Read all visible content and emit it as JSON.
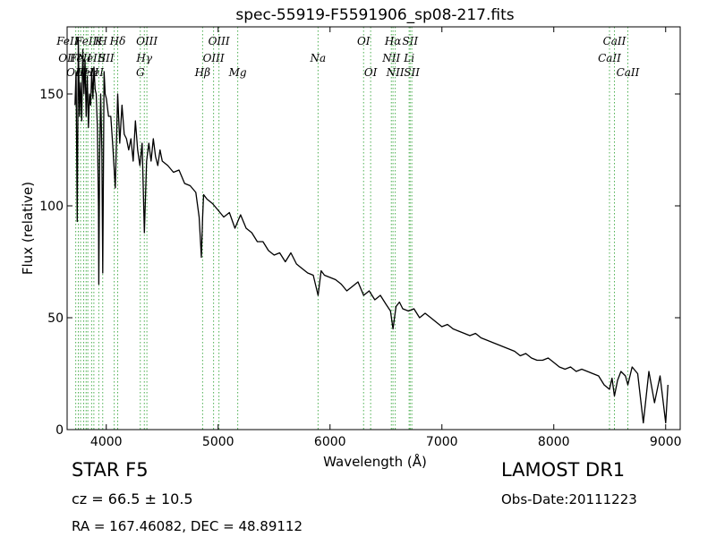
{
  "chart_data": {
    "type": "line",
    "title": "spec-55919-F5591906_sp08-217.fits",
    "xlabel": "Wavelength (Å)",
    "ylabel": "Flux (relative)",
    "xlim": [
      3650,
      9130
    ],
    "ylim": [
      0,
      180
    ],
    "xticks": [
      4000,
      5000,
      6000,
      7000,
      8000,
      9000
    ],
    "yticks": [
      0,
      50,
      100,
      150
    ],
    "grid": false,
    "line_color": "#000000",
    "marker_line_color": "#4caf50",
    "series": [
      {
        "x": [
          3720,
          3730,
          3740,
          3750,
          3760,
          3770,
          3780,
          3790,
          3800,
          3810,
          3820,
          3830,
          3840,
          3850,
          3860,
          3870,
          3880,
          3890,
          3900,
          3910,
          3920,
          3930,
          3933,
          3940,
          3950,
          3960,
          3968,
          3980,
          3990,
          4000,
          4020,
          4040,
          4060,
          4080,
          4102,
          4120,
          4140,
          4160,
          4180,
          4200,
          4220,
          4240,
          4260,
          4280,
          4300,
          4320,
          4340,
          4360,
          4380,
          4400,
          4420,
          4440,
          4460,
          4480,
          4500,
          4550,
          4600,
          4650,
          4700,
          4750,
          4800,
          4830,
          4850,
          4861,
          4870,
          4900,
          4950,
          5000,
          5050,
          5100,
          5150,
          5200,
          5250,
          5300,
          5350,
          5400,
          5450,
          5500,
          5550,
          5600,
          5650,
          5700,
          5750,
          5800,
          5850,
          5893,
          5920,
          5950,
          6000,
          6050,
          6100,
          6150,
          6200,
          6250,
          6300,
          6350,
          6400,
          6450,
          6500,
          6540,
          6563,
          6590,
          6620,
          6650,
          6700,
          6750,
          6800,
          6850,
          6900,
          6950,
          7000,
          7050,
          7100,
          7150,
          7200,
          7250,
          7300,
          7350,
          7400,
          7450,
          7500,
          7550,
          7600,
          7650,
          7700,
          7750,
          7800,
          7850,
          7900,
          7950,
          8000,
          8050,
          8100,
          8150,
          8200,
          8250,
          8300,
          8350,
          8400,
          8450,
          8498,
          8520,
          8542,
          8570,
          8600,
          8640,
          8662,
          8700,
          8750,
          8800,
          8850,
          8900,
          8950,
          9000,
          9020
        ],
        "y": [
          145,
          160,
          93,
          175,
          140,
          155,
          138,
          170,
          150,
          165,
          140,
          158,
          135,
          150,
          145,
          160,
          148,
          162,
          152,
          150,
          135,
          100,
          65,
          120,
          150,
          125,
          70,
          160,
          150,
          148,
          140,
          140,
          125,
          108,
          150,
          128,
          145,
          132,
          130,
          125,
          130,
          120,
          138,
          125,
          118,
          128,
          88,
          120,
          128,
          120,
          130,
          122,
          118,
          125,
          120,
          118,
          115,
          116,
          110,
          109,
          106,
          95,
          77,
          95,
          105,
          103,
          101,
          98,
          95,
          97,
          90,
          96,
          90,
          88,
          84,
          84,
          80,
          78,
          79,
          75,
          79,
          74,
          72,
          70,
          69,
          60,
          71,
          69,
          68,
          67,
          65,
          62,
          64,
          66,
          60,
          62,
          58,
          60,
          56,
          53,
          45,
          55,
          57,
          54,
          53,
          54,
          50,
          52,
          50,
          48,
          46,
          47,
          45,
          44,
          43,
          42,
          43,
          41,
          40,
          39,
          38,
          37,
          36,
          35,
          33,
          34,
          32,
          31,
          31,
          32,
          30,
          28,
          27,
          28,
          26,
          27,
          26,
          25,
          24,
          20,
          18,
          23,
          15,
          22,
          26,
          24,
          20,
          28,
          25,
          3,
          26,
          12,
          24,
          3,
          20
        ]
      }
    ],
    "line_markers": [
      {
        "wave": 3727,
        "row": 2,
        "label": "OII",
        "anchor": "end"
      },
      {
        "wave": 3750,
        "row": 1,
        "label": "FeII",
        "anchor": "end"
      },
      {
        "wave": 3770,
        "row": 2,
        "label": "FeII",
        "anchor": "middle"
      },
      {
        "wave": 3798,
        "row": 3,
        "label": "OII",
        "anchor": "end"
      },
      {
        "wave": 3820,
        "row": 1,
        "label": "FeII",
        "anchor": "middle"
      },
      {
        "wave": 3835,
        "row": 3,
        "label": "FeII",
        "anchor": "middle"
      },
      {
        "wave": 3869,
        "row": 2,
        "label": "NeIII",
        "anchor": "middle"
      },
      {
        "wave": 3889,
        "row": 3,
        "label": "HeI",
        "anchor": "middle"
      },
      {
        "wave": 3933,
        "row": 1,
        "label": "K",
        "anchor": "middle"
      },
      {
        "wave": 3968,
        "row": 1,
        "label": "H",
        "anchor": "middle"
      },
      {
        "wave": 4071,
        "row": 2,
        "label": "SII",
        "anchor": "end"
      },
      {
        "wave": 4102,
        "row": 1,
        "label": "Hδ",
        "anchor": "middle"
      },
      {
        "wave": 4304,
        "row": 3,
        "label": "G",
        "anchor": "middle"
      },
      {
        "wave": 4340,
        "row": 2,
        "label": "Hγ",
        "anchor": "middle"
      },
      {
        "wave": 4363,
        "row": 1,
        "label": "OIII",
        "anchor": "middle"
      },
      {
        "wave": 4861,
        "row": 3,
        "label": "Hβ",
        "anchor": "middle"
      },
      {
        "wave": 4959,
        "row": 2,
        "label": "OIII",
        "anchor": "middle"
      },
      {
        "wave": 5007,
        "row": 1,
        "label": "OIII",
        "anchor": "middle"
      },
      {
        "wave": 5175,
        "row": 3,
        "label": "Mg",
        "anchor": "middle"
      },
      {
        "wave": 5893,
        "row": 2,
        "label": "Na",
        "anchor": "middle"
      },
      {
        "wave": 6300,
        "row": 1,
        "label": "OI",
        "anchor": "middle"
      },
      {
        "wave": 6363,
        "row": 3,
        "label": "OI",
        "anchor": "middle"
      },
      {
        "wave": 6548,
        "row": 2,
        "label": "NII",
        "anchor": "middle"
      },
      {
        "wave": 6563,
        "row": 1,
        "label": "Hα",
        "anchor": "middle"
      },
      {
        "wave": 6583,
        "row": 3,
        "label": "NII",
        "anchor": "middle"
      },
      {
        "wave": 6707,
        "row": 2,
        "label": "Li",
        "anchor": "middle"
      },
      {
        "wave": 6716,
        "row": 1,
        "label": "SII",
        "anchor": "middle"
      },
      {
        "wave": 6731,
        "row": 3,
        "label": "SII",
        "anchor": "middle"
      },
      {
        "wave": 8498,
        "row": 2,
        "label": "CaII",
        "anchor": "middle"
      },
      {
        "wave": 8542,
        "row": 1,
        "label": "CaII",
        "anchor": "middle"
      },
      {
        "wave": 8662,
        "row": 3,
        "label": "CaII",
        "anchor": "middle"
      }
    ]
  },
  "info": {
    "class": "STAR   F5",
    "survey": "LAMOST DR1",
    "cz": "cz = 66.5  ± 10.5",
    "obs_date": "Obs-Date:20111223",
    "ra_dec": "RA = 167.46082, DEC = 48.89112"
  }
}
